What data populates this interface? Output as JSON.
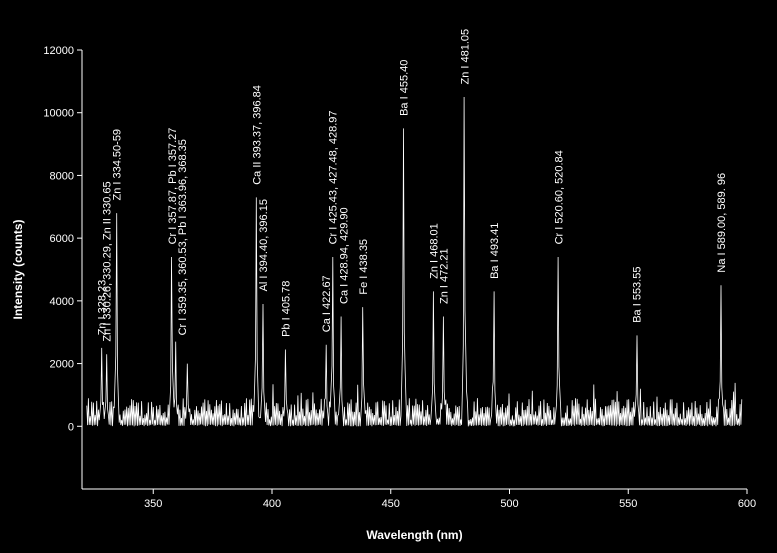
{
  "chart_data": {
    "type": "line",
    "title": "",
    "xlabel": "Wavelength (nm)",
    "ylabel": "Intensity (counts)",
    "xlim": [
      320,
      600
    ],
    "ylim": [
      -2000,
      12000
    ],
    "xticks": [
      350,
      400,
      450,
      500,
      550,
      600
    ],
    "yticks": [
      0,
      2000,
      4000,
      6000,
      8000,
      10000,
      12000
    ],
    "grid": false,
    "legend": "none",
    "colors": {
      "background": "#000000",
      "line": "#ffffff",
      "axis": "#ffffff"
    },
    "series": [
      {
        "peaks": [
          {
            "x": 328.23,
            "y": 2500
          },
          {
            "x": 330.26,
            "y": 2300
          },
          {
            "x": 334.5,
            "y": 6800
          },
          {
            "x": 357.87,
            "y": 5400
          },
          {
            "x": 359.35,
            "y": 2700
          },
          {
            "x": 364.5,
            "y": 2000
          },
          {
            "x": 393.37,
            "y": 7300
          },
          {
            "x": 396.15,
            "y": 3900
          },
          {
            "x": 405.78,
            "y": 2450
          },
          {
            "x": 422.67,
            "y": 2600
          },
          {
            "x": 425.43,
            "y": 5400
          },
          {
            "x": 428.94,
            "y": 3500
          },
          {
            "x": 438.35,
            "y": 3800
          },
          {
            "x": 455.4,
            "y": 9500
          },
          {
            "x": 468.01,
            "y": 4300
          },
          {
            "x": 472.21,
            "y": 3500
          },
          {
            "x": 481.05,
            "y": 10500
          },
          {
            "x": 493.41,
            "y": 4300
          },
          {
            "x": 520.6,
            "y": 5400
          },
          {
            "x": 553.55,
            "y": 2900
          },
          {
            "x": 588.99,
            "y": 4500
          }
        ]
      }
    ],
    "annotations": [
      {
        "text": "Zn I 328.23",
        "x": 328.23,
        "y": 2900
      },
      {
        "text": "Zn I 330.26, 330.29, Zn II 330.65",
        "x": 330.26,
        "y": 2700
      },
      {
        "text": "Zn I 334.50-59",
        "x": 334.5,
        "y": 7200
      },
      {
        "text": "Cr I 357.87, Pb I 357.27",
        "x": 357.87,
        "y": 5800
      },
      {
        "text": "Cr I 359.35, 360.53, Pb I 363.96, 368.35",
        "x": 362.0,
        "y": 2900
      },
      {
        "text": "Ca II 393.37, 396.84",
        "x": 393.37,
        "y": 7700
      },
      {
        "text": "Al I 394.40, 396.15",
        "x": 396.15,
        "y": 4300
      },
      {
        "text": "Pb I 405.78",
        "x": 405.78,
        "y": 2850
      },
      {
        "text": "Ca I 422.67",
        "x": 422.67,
        "y": 3000
      },
      {
        "text": "Cr I 425.43, 427.48, 428.97",
        "x": 425.43,
        "y": 5800
      },
      {
        "text": "Ca I 428.94, 429.90",
        "x": 430.0,
        "y": 3900
      },
      {
        "text": "Fe I 438.35",
        "x": 438.35,
        "y": 4200
      },
      {
        "text": "Ba I 455.40",
        "x": 455.4,
        "y": 9900
      },
      {
        "text": "Zn I 468.01",
        "x": 468.01,
        "y": 4700
      },
      {
        "text": "Zn I 472.21",
        "x": 472.21,
        "y": 3900
      },
      {
        "text": "Zn I 481.05",
        "x": 481.05,
        "y": 10900
      },
      {
        "text": "Ba I 493.41",
        "x": 493.41,
        "y": 4700
      },
      {
        "text": "Cr I 520.60, 520.84",
        "x": 520.6,
        "y": 5800
      },
      {
        "text": "Ba I 553.55",
        "x": 553.55,
        "y": 3300
      },
      {
        "text": "Na I 589.00, 589. 96",
        "x": 589.0,
        "y": 4900
      }
    ]
  }
}
